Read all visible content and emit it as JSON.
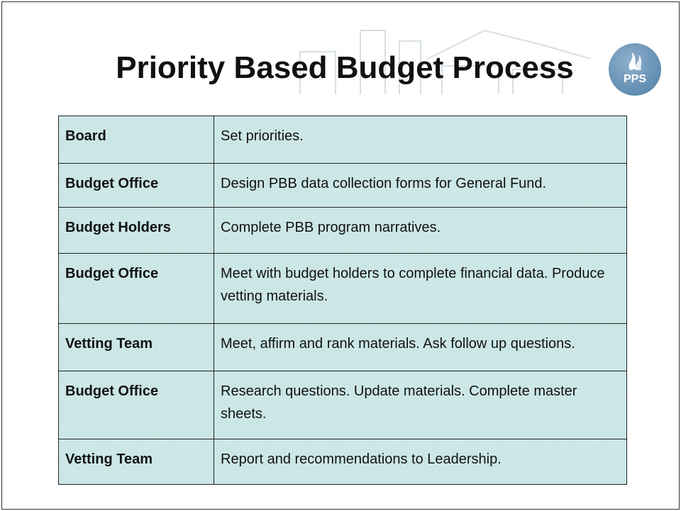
{
  "header": {
    "title": "Priority Based Budget Process",
    "logo": "PPS"
  },
  "table": {
    "rows": [
      [
        "Board",
        "Set priorities."
      ],
      [
        "Budget Office",
        "Design PBB data collection forms for General Fund."
      ],
      [
        "Budget Holders",
        "Complete PBB program narratives."
      ],
      [
        "Budget Office",
        "Meet with budget holders to complete financial data. Produce vetting materials."
      ],
      [
        "Vetting Team",
        "Meet, affirm and rank materials. Ask follow up questions."
      ],
      [
        "Budget Office",
        "Research questions. Update materials. Complete master sheets."
      ],
      [
        "Vetting Team",
        "Report and recommendations to Leadership."
      ]
    ]
  }
}
